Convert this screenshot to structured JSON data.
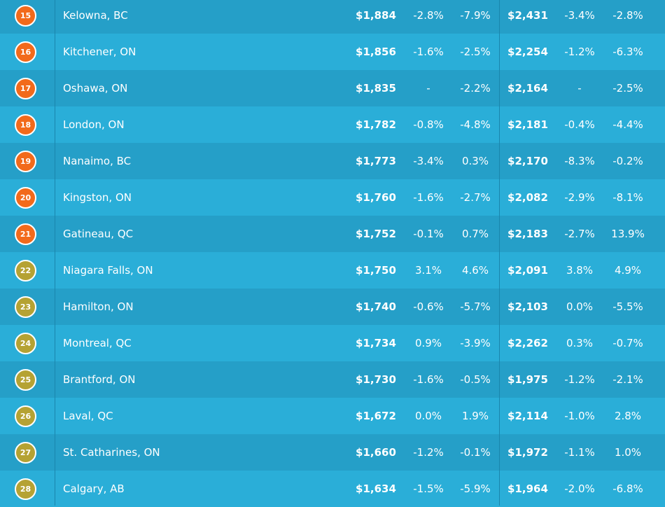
{
  "table": {
    "rows": [
      [
        "15",
        "Kelowna, BC",
        "$1,884",
        "-2.8%",
        "-7.9%",
        "$2,431",
        "-3.4%",
        "-2.8%"
      ],
      [
        "16",
        "Kitchener, ON",
        "$1,856",
        "-1.6%",
        "-2.5%",
        "$2,254",
        "-1.2%",
        "-6.3%"
      ],
      [
        "17",
        "Oshawa, ON",
        "$1,835",
        "-",
        "-2.2%",
        "$2,164",
        "-",
        "-2.5%"
      ],
      [
        "18",
        "London, ON",
        "$1,782",
        "-0.8%",
        "-4.8%",
        "$2,181",
        "-0.4%",
        "-4.4%"
      ],
      [
        "19",
        "Nanaimo, BC",
        "$1,773",
        "-3.4%",
        "0.3%",
        "$2,170",
        "-8.3%",
        "-0.2%"
      ],
      [
        "20",
        "Kingston, ON",
        "$1,760",
        "-1.6%",
        "-2.7%",
        "$2,082",
        "-2.9%",
        "-8.1%"
      ],
      [
        "21",
        "Gatineau, QC",
        "$1,752",
        "-0.1%",
        "0.7%",
        "$2,183",
        "-2.7%",
        "13.9%"
      ],
      [
        "22",
        "Niagara Falls, ON",
        "$1,750",
        "3.1%",
        "4.6%",
        "$2,091",
        "3.8%",
        "4.9%"
      ],
      [
        "23",
        "Hamilton, ON",
        "$1,740",
        "-0.6%",
        "-5.7%",
        "$2,103",
        "0.0%",
        "-5.5%"
      ],
      [
        "24",
        "Montreal, QC",
        "$1,734",
        "0.9%",
        "-3.9%",
        "$2,262",
        "0.3%",
        "-0.7%"
      ],
      [
        "25",
        "Brantford, ON",
        "$1,730",
        "-1.6%",
        "-0.5%",
        "$1,975",
        "-1.2%",
        "-2.1%"
      ],
      [
        "26",
        "Laval, QC",
        "$1,672",
        "0.0%",
        "1.9%",
        "$2,114",
        "-1.0%",
        "2.8%"
      ],
      [
        "27",
        "St. Catharines, ON",
        "$1,660",
        "-1.2%",
        "-0.1%",
        "$1,972",
        "-1.1%",
        "1.0%"
      ],
      [
        "28",
        "Calgary, AB",
        "$1,634",
        "-1.5%",
        "-5.9%",
        "$1,964",
        "-2.0%",
        "-6.8%"
      ]
    ]
  }
}
